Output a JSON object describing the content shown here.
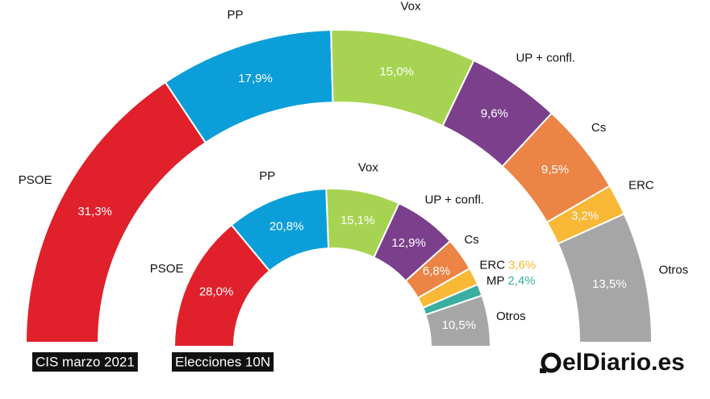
{
  "chart_data": [
    {
      "type": "semidonut",
      "title": "CIS marzo 2021",
      "categories": [
        "PSOE",
        "PP",
        "Vox",
        "UP + confl.",
        "Cs",
        "ERC",
        "Otros"
      ],
      "values": [
        31.3,
        17.9,
        15.0,
        9.6,
        9.5,
        3.2,
        13.5
      ],
      "value_labels": [
        "31,3%",
        "17,9%",
        "15,0%",
        "9,6%",
        "9,5%",
        "3,2%",
        "13,5%"
      ],
      "colors": [
        "#e0202a",
        "#0b9ed9",
        "#a6d452",
        "#7b3f8c",
        "#ec8446",
        "#f9b835",
        "#a6a6a6"
      ]
    },
    {
      "type": "semidonut",
      "title": "Elecciones 10N",
      "categories": [
        "PSOE",
        "PP",
        "Vox",
        "UP + confl.",
        "Cs",
        "ERC",
        "MP",
        "Otros"
      ],
      "values": [
        28.0,
        20.8,
        15.1,
        12.9,
        6.8,
        3.6,
        2.4,
        10.5
      ],
      "value_labels": [
        "28,0%",
        "20,8%",
        "15,1%",
        "12,9%",
        "6,8%",
        "3,6%",
        "2,4%",
        "10,5%"
      ],
      "colors": [
        "#e0202a",
        "#0b9ed9",
        "#a6d452",
        "#7b3f8c",
        "#ec8446",
        "#f9b835",
        "#3aaea0",
        "#a6a6a6"
      ]
    }
  ],
  "logo": "elDiario.es"
}
